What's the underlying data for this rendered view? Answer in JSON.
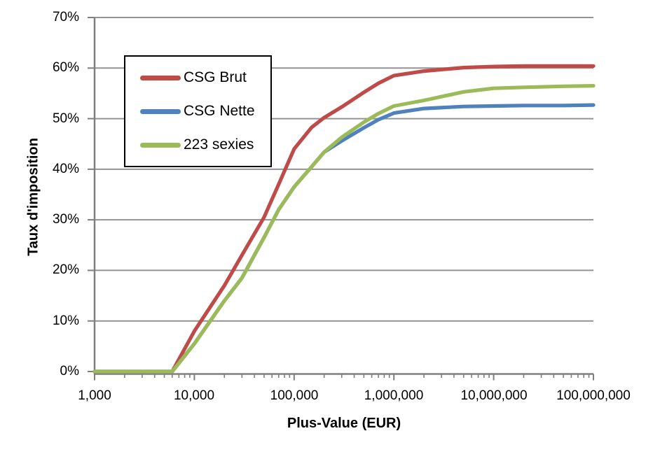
{
  "chart_data": {
    "type": "line",
    "title": "",
    "xlabel": "Plus-Value (EUR)",
    "ylabel": "Taux d'imposition",
    "x_scale": "log",
    "xlim": [
      1000,
      100000000
    ],
    "ylim": [
      0,
      70
    ],
    "grid": "horizontal",
    "legend_position": "upper-left-inside",
    "x_ticks": [
      1000,
      10000,
      100000,
      1000000,
      10000000,
      100000000
    ],
    "x_tick_labels": [
      "1,000",
      "10,000",
      "100,000",
      "1,000,000",
      "10,000,000",
      "100,000,000"
    ],
    "y_ticks": [
      0,
      10,
      20,
      30,
      40,
      50,
      60,
      70
    ],
    "y_tick_labels": [
      "0%",
      "10%",
      "20%",
      "30%",
      "40%",
      "50%",
      "60%",
      "70%"
    ],
    "y_unit": "percent",
    "series": [
      {
        "name": "CSG Brut",
        "color": "#BE4B48",
        "points": [
          [
            1000,
            0
          ],
          [
            2000,
            0
          ],
          [
            5000,
            0
          ],
          [
            6000,
            0
          ],
          [
            10000,
            8
          ],
          [
            20000,
            17
          ],
          [
            30000,
            23
          ],
          [
            50000,
            30.5
          ],
          [
            70000,
            37
          ],
          [
            100000,
            44
          ],
          [
            150000,
            48.3
          ],
          [
            200000,
            50.2
          ],
          [
            300000,
            52.3
          ],
          [
            500000,
            55.2
          ],
          [
            700000,
            57
          ],
          [
            1000000,
            58.5
          ],
          [
            2000000,
            59.4
          ],
          [
            5000000,
            60.1
          ],
          [
            10000000,
            60.3
          ],
          [
            20000000,
            60.4
          ],
          [
            50000000,
            60.4
          ],
          [
            100000000,
            60.4
          ]
        ]
      },
      {
        "name": "CSG Nette",
        "color": "#4F81BD",
        "points": [
          [
            1000,
            0
          ],
          [
            2000,
            0
          ],
          [
            5000,
            0
          ],
          [
            6000,
            0
          ],
          [
            10000,
            5.5
          ],
          [
            20000,
            14
          ],
          [
            30000,
            18.5
          ],
          [
            50000,
            26.5
          ],
          [
            70000,
            32
          ],
          [
            100000,
            36.5
          ],
          [
            150000,
            40.5
          ],
          [
            200000,
            43.4
          ],
          [
            300000,
            45.6
          ],
          [
            500000,
            48.2
          ],
          [
            700000,
            49.8
          ],
          [
            1000000,
            51.1
          ],
          [
            2000000,
            52
          ],
          [
            5000000,
            52.4
          ],
          [
            10000000,
            52.5
          ],
          [
            20000000,
            52.6
          ],
          [
            50000000,
            52.6
          ],
          [
            100000000,
            52.7
          ]
        ]
      },
      {
        "name": "223 sexies",
        "color": "#9BBB59",
        "points": [
          [
            1000,
            0
          ],
          [
            2000,
            0
          ],
          [
            5000,
            0
          ],
          [
            6000,
            0
          ],
          [
            10000,
            5.5
          ],
          [
            20000,
            14
          ],
          [
            30000,
            18.5
          ],
          [
            50000,
            26.5
          ],
          [
            70000,
            32
          ],
          [
            100000,
            36.5
          ],
          [
            150000,
            40.5
          ],
          [
            200000,
            43.4
          ],
          [
            300000,
            46.3
          ],
          [
            500000,
            49.3
          ],
          [
            700000,
            51
          ],
          [
            1000000,
            52.5
          ],
          [
            2000000,
            53.6
          ],
          [
            5000000,
            55.3
          ],
          [
            10000000,
            56
          ],
          [
            20000000,
            56.2
          ],
          [
            50000000,
            56.4
          ],
          [
            100000000,
            56.5
          ]
        ]
      }
    ],
    "colors": {
      "gridline": "#939393",
      "axis": "#7F7F7F",
      "text": "#000000",
      "background": "#FFFFFF",
      "legend_border": "#000000"
    }
  }
}
